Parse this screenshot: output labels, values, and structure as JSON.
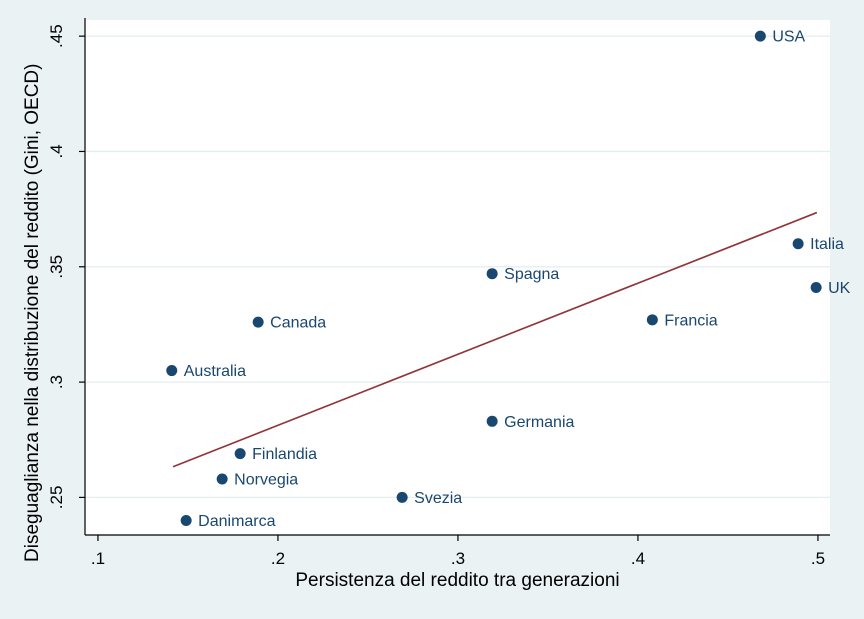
{
  "chart_data": {
    "type": "scatter",
    "title": "",
    "xlabel": "Persistenza del reddito tra generazioni",
    "ylabel": "Diseguaglianza nella distribuzione del reddito (Gini, OECD)",
    "xlim": [
      0.0928,
      0.5067
    ],
    "ylim": [
      0.2337,
      0.457
    ],
    "x_ticks": {
      "values": [
        0.1,
        0.2,
        0.3,
        0.4,
        0.5
      ],
      "labels": [
        ".1",
        ".2",
        ".3",
        ".4",
        ".5"
      ]
    },
    "y_ticks": {
      "values": [
        0.25,
        0.3,
        0.35,
        0.4,
        0.45
      ],
      "labels": [
        ".25",
        ".3",
        ".35",
        ".4",
        ".45"
      ]
    },
    "grid": "horizontal-only",
    "legend": "none",
    "points": [
      {
        "label": "USA",
        "x": 0.468,
        "y": 0.45
      },
      {
        "label": "Italia",
        "x": 0.489,
        "y": 0.36
      },
      {
        "label": "UK",
        "x": 0.499,
        "y": 0.341
      },
      {
        "label": "Spagna",
        "x": 0.319,
        "y": 0.347
      },
      {
        "label": "Francia",
        "x": 0.408,
        "y": 0.327
      },
      {
        "label": "Canada",
        "x": 0.189,
        "y": 0.326
      },
      {
        "label": "Australia",
        "x": 0.141,
        "y": 0.305
      },
      {
        "label": "Germania",
        "x": 0.319,
        "y": 0.283
      },
      {
        "label": "Finlandia",
        "x": 0.179,
        "y": 0.269
      },
      {
        "label": "Norvegia",
        "x": 0.169,
        "y": 0.258
      },
      {
        "label": "Svezia",
        "x": 0.269,
        "y": 0.25
      },
      {
        "label": "Danimarca",
        "x": 0.149,
        "y": 0.24
      }
    ],
    "fit_line": {
      "x1": 0.1417,
      "y1": 0.2633,
      "x2": 0.4994,
      "y2": 0.3735
    },
    "colors": {
      "marker": "#1a476f",
      "point_label": "#1a476f",
      "fit_line": "#90353b",
      "background": "#eaf2f3",
      "plot_background": "#ffffff",
      "gridline": "#e4edf0",
      "axis": "#000000",
      "text": "#000000"
    }
  }
}
